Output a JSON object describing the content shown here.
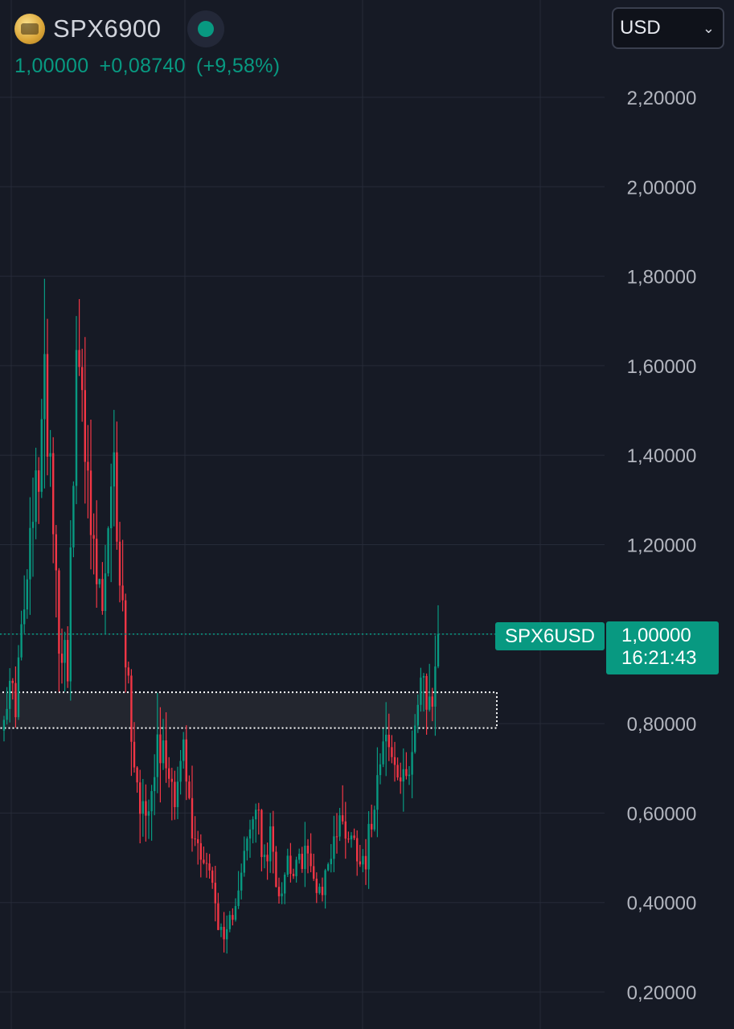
{
  "header": {
    "symbol": "SPX6900",
    "last": "1,00000",
    "change": "+0,08740",
    "change_pct": "(+9,58%)",
    "coin_icon": "spx6900-coin-icon",
    "status_icon": "live-status-dot-icon"
  },
  "currency": {
    "selected": "USD",
    "chevron": "⌄"
  },
  "price_tag": {
    "ticker": "SPX6USD",
    "price": "1,00000",
    "countdown": "16:21:43"
  },
  "colors": {
    "background": "#161a25",
    "grid": "#262b38",
    "up": "#089981",
    "down": "#f23645",
    "axis_text": "#b2b5be",
    "zone_fill": "#23262f",
    "zone_border": "#ffffff"
  },
  "chart_data": {
    "type": "candlestick",
    "ylim": [
      0.1,
      2.4
    ],
    "y_ticks": [
      "2,20000",
      "2,00000",
      "1,80000",
      "1,60000",
      "1,40000",
      "1,20000",
      "0,80000",
      "0,60000",
      "0,40000",
      "0,20000"
    ],
    "y_tick_values": [
      2.2,
      2.0,
      1.8,
      1.6,
      1.4,
      1.2,
      0.8,
      0.6,
      0.4,
      0.2
    ],
    "grid": true,
    "current_price_line": 1.0,
    "zone": {
      "low": 0.79,
      "high": 0.87
    },
    "anchors": [
      [
        0,
        0.86
      ],
      [
        4,
        0.86
      ],
      [
        7,
        1.05
      ],
      [
        12,
        1.38
      ],
      [
        14,
        1.55
      ],
      [
        16,
        1.42
      ],
      [
        19,
        1.0
      ],
      [
        22,
        0.95
      ],
      [
        25,
        1.55
      ],
      [
        27,
        1.62
      ],
      [
        29,
        1.3
      ],
      [
        31,
        1.15
      ],
      [
        34,
        1.05
      ],
      [
        38,
        1.35
      ],
      [
        42,
        0.95
      ],
      [
        46,
        0.65
      ],
      [
        49,
        0.6
      ],
      [
        53,
        0.76
      ],
      [
        56,
        0.72
      ],
      [
        59,
        0.65
      ],
      [
        62,
        0.74
      ],
      [
        65,
        0.55
      ],
      [
        68,
        0.52
      ],
      [
        71,
        0.47
      ],
      [
        74,
        0.36
      ],
      [
        76,
        0.3
      ],
      [
        79,
        0.38
      ],
      [
        82,
        0.48
      ],
      [
        85,
        0.55
      ],
      [
        87,
        0.62
      ],
      [
        90,
        0.48
      ],
      [
        92,
        0.54
      ],
      [
        95,
        0.42
      ],
      [
        98,
        0.5
      ],
      [
        101,
        0.47
      ],
      [
        104,
        0.52
      ],
      [
        107,
        0.45
      ],
      [
        110,
        0.43
      ],
      [
        113,
        0.52
      ],
      [
        116,
        0.58
      ],
      [
        119,
        0.56
      ],
      [
        122,
        0.52
      ],
      [
        125,
        0.5
      ],
      [
        128,
        0.64
      ],
      [
        131,
        0.8
      ],
      [
        133,
        0.74
      ],
      [
        136,
        0.68
      ],
      [
        138,
        0.66
      ],
      [
        141,
        0.76
      ],
      [
        144,
        0.88
      ],
      [
        146,
        0.84
      ],
      [
        148,
        0.86
      ],
      [
        149,
        0.95
      ],
      [
        150,
        1.0
      ]
    ]
  }
}
